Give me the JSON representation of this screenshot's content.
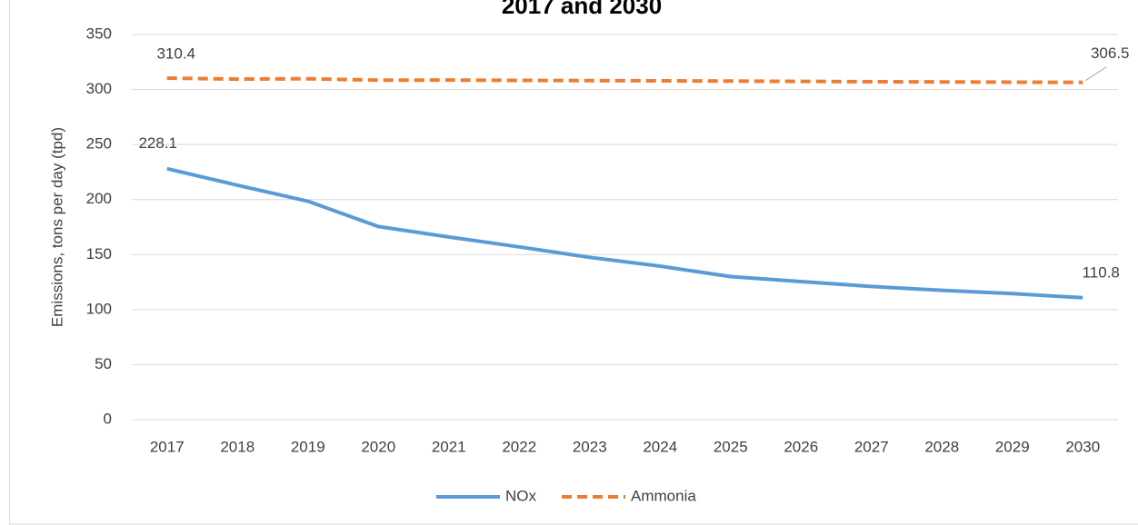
{
  "chart_data": {
    "type": "line",
    "title": "2017 and 2030",
    "y_label": "Emissions, tons per day (tpd)",
    "categories": [
      "2017",
      "2018",
      "2019",
      "2020",
      "2021",
      "2022",
      "2023",
      "2024",
      "2025",
      "2026",
      "2027",
      "2028",
      "2029",
      "2030"
    ],
    "series": [
      {
        "name": "NOx",
        "color": "#5b9bd5",
        "dashed": false,
        "values": [
          228.1,
          213,
          198.5,
          175.5,
          166,
          157,
          147.5,
          139.5,
          130,
          125.5,
          121,
          117.5,
          114.5,
          110.8
        ]
      },
      {
        "name": "Ammonia",
        "color": "#ed7d31",
        "dashed": true,
        "values": [
          310.4,
          309.5,
          309.8,
          308.5,
          308.6,
          308.3,
          308.1,
          307.9,
          307.7,
          307.4,
          307.1,
          306.9,
          306.7,
          306.5
        ]
      }
    ],
    "ylim": [
      0,
      350
    ],
    "yticks": [
      0,
      50,
      100,
      150,
      200,
      250,
      300,
      350
    ],
    "grid": true,
    "legend": "bottom"
  }
}
